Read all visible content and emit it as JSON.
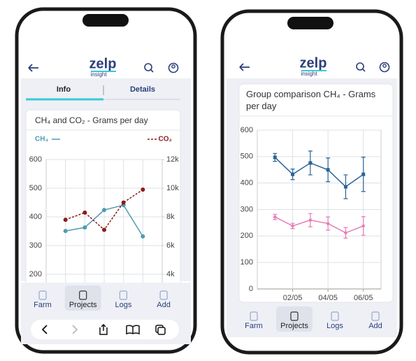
{
  "screens": [
    {
      "header": {
        "logo": "zelp",
        "logo_sub": "insight"
      },
      "tabs": [
        "Info",
        "Details"
      ],
      "chart_data": {
        "type": "line",
        "title": "CH₄ and CO₂ - Grams per day",
        "categories": [
          null,
          null,
          null,
          null,
          null
        ],
        "series": [
          {
            "name": "CH₄",
            "color": "#4f9bb1",
            "values": [
              351,
              363,
              424,
              441,
              332
            ]
          },
          {
            "name": "CO₂",
            "color": "#8b1c1c",
            "axis": "y2",
            "dashed": true,
            "values": [
              7800,
              8300,
              7100,
              9000,
              9900
            ]
          }
        ],
        "ylim": [
          200,
          600
        ],
        "yticks": [
          200,
          300,
          400,
          500,
          600
        ],
        "y2lim": [
          4000,
          12000
        ],
        "y2ticks": [
          {
            "value": 4000,
            "label": "4k"
          },
          {
            "value": 6000,
            "label": "6k"
          },
          {
            "value": 8000,
            "label": "8k"
          },
          {
            "value": 10000,
            "label": "10k"
          },
          {
            "value": 12000,
            "label": "12k"
          }
        ],
        "grid": true
      },
      "nav": [
        "Farm",
        "Projects",
        "Logs",
        "Add"
      ],
      "nav_active": 1
    },
    {
      "header": {
        "logo": "zelp",
        "logo_sub": "insight"
      },
      "chart_data": {
        "type": "line",
        "title": "Group comparison CH₄ - Grams per day",
        "categories": [
          null,
          "02/05",
          null,
          "04/05",
          null,
          "06/05"
        ],
        "series": [
          {
            "color": "#2a6496",
            "marker": "square",
            "values": [
              497,
              433,
              476,
              450,
              386,
              433
            ],
            "errors": [
              15,
              20,
              45,
              45,
              45,
              65
            ]
          },
          {
            "color": "#e87bb7",
            "marker": "circle",
            "values": [
              272,
              238,
              260,
              247,
              212,
              238
            ],
            "errors": [
              10,
              10,
              25,
              25,
              20,
              35
            ]
          }
        ],
        "ylim": [
          0,
          600
        ],
        "yticks": [
          0,
          100,
          200,
          300,
          400,
          500,
          600
        ],
        "grid": true
      },
      "nav": [
        "Farm",
        "Projects",
        "Logs",
        "Add"
      ],
      "nav_active": 1
    }
  ]
}
